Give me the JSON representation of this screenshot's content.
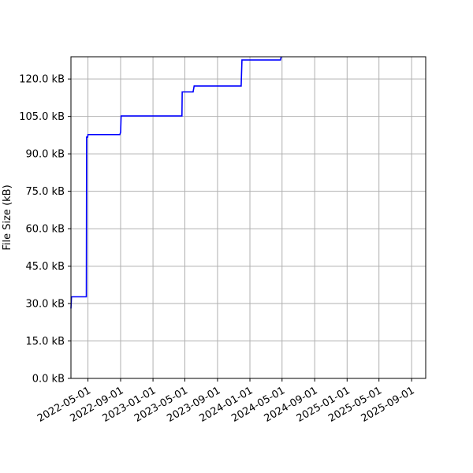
{
  "chart_data": {
    "type": "line",
    "title": "",
    "xlabel": "",
    "ylabel": "File Size (kB)",
    "grid": true,
    "line_style": "step",
    "colors": {
      "line": "#0000ff",
      "grid": "#b0b0b0",
      "axes": "#000000"
    },
    "xlim": [
      "2022-02-26",
      "2025-10-24"
    ],
    "ylim": [
      0,
      128.9
    ],
    "x_tick_labels": [
      "2022-05-01",
      "2022-09-01",
      "2023-01-01",
      "2023-05-01",
      "2023-09-01",
      "2024-01-01",
      "2024-05-01",
      "2024-09-01",
      "2025-01-01",
      "2025-05-01",
      "2025-09-01"
    ],
    "y_tick_values": [
      0,
      15,
      30,
      45,
      60,
      75,
      90,
      105,
      120
    ],
    "y_tick_labels": [
      "0.0 kB",
      "15.0 kB",
      "30.0 kB",
      "45.0 kB",
      "60.0 kB",
      "75.0 kB",
      "90.0 kB",
      "105.0 kB",
      "120.0 kB"
    ],
    "series": [
      {
        "points": [
          [
            "2022-02-26",
            28.0
          ],
          [
            "2022-02-28",
            32.7
          ],
          [
            "2022-04-25",
            32.7
          ],
          [
            "2022-04-26",
            96.7
          ],
          [
            "2022-04-30",
            96.7
          ],
          [
            "2022-05-01",
            97.7
          ],
          [
            "2022-08-29",
            97.7
          ],
          [
            "2022-09-01",
            98.6
          ],
          [
            "2022-09-03",
            105.2
          ],
          [
            "2023-04-20",
            105.2
          ],
          [
            "2023-04-21",
            114.8
          ],
          [
            "2023-06-01",
            114.8
          ],
          [
            "2023-06-05",
            117.2
          ],
          [
            "2023-11-29",
            117.2
          ],
          [
            "2023-12-02",
            127.6
          ],
          [
            "2024-04-25",
            127.6
          ],
          [
            "2024-04-28",
            128.9
          ]
        ]
      }
    ]
  }
}
